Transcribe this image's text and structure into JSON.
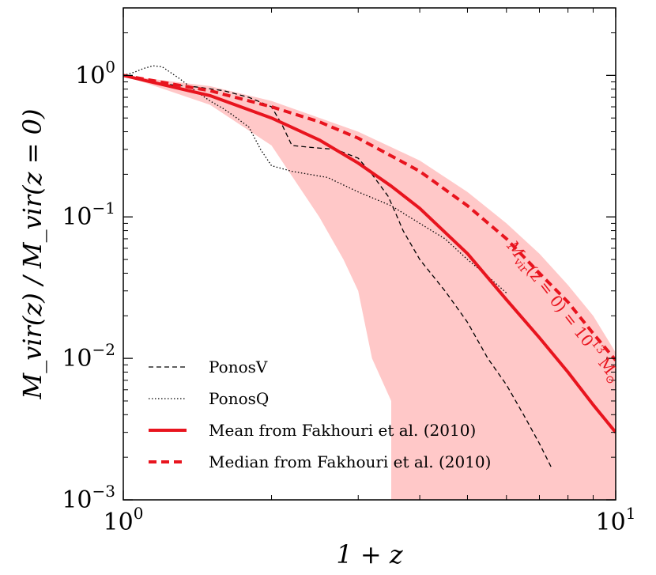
{
  "chart_data": {
    "type": "line",
    "x_scale": "log",
    "y_scale": "log",
    "xlim": [
      1,
      10
    ],
    "ylim": [
      0.001,
      3
    ],
    "xlabel": "1 + z",
    "ylabel": "M_vir(z) / M_vir(z = 0)",
    "x_ticks": [
      {
        "value": 1,
        "label_base": "10",
        "label_exp": "0"
      },
      {
        "value": 10,
        "label_base": "10",
        "label_exp": "1"
      }
    ],
    "y_ticks": [
      {
        "value": 1,
        "label_base": "10",
        "label_exp": "0"
      },
      {
        "value": 0.1,
        "label_base": "10",
        "label_exp": "−1"
      },
      {
        "value": 0.01,
        "label_base": "10",
        "label_exp": "−2"
      },
      {
        "value": 0.001,
        "label_base": "10",
        "label_exp": "−3"
      }
    ],
    "band": {
      "name": "scatter range",
      "color": "#ffc8c8",
      "upper": {
        "x": [
          1,
          1.5,
          2,
          3,
          4,
          5,
          6,
          7,
          8,
          9,
          10
        ],
        "y": [
          1,
          0.84,
          0.66,
          0.4,
          0.25,
          0.15,
          0.09,
          0.055,
          0.033,
          0.02,
          0.011
        ]
      },
      "lower": {
        "x": [
          1,
          1.5,
          2,
          2.5,
          2.8,
          3.0,
          3.2,
          3.5,
          3.5,
          10
        ],
        "y": [
          1,
          0.62,
          0.32,
          0.1,
          0.05,
          0.03,
          0.01,
          0.005,
          0.001,
          0.001
        ]
      }
    },
    "series": [
      {
        "name": "PonosV",
        "style": "dashed",
        "color": "#000000",
        "x": [
          1,
          1.2,
          1.4,
          1.6,
          1.8,
          2.0,
          2.1,
          2.2,
          2.4,
          2.7,
          3.0,
          3.2,
          3.45,
          3.6,
          3.7,
          4.0,
          4.5,
          5.0,
          5.5,
          6.0,
          6.5,
          7.0,
          7.4
        ],
        "y": [
          1,
          0.87,
          0.83,
          0.78,
          0.7,
          0.6,
          0.45,
          0.32,
          0.31,
          0.3,
          0.26,
          0.2,
          0.14,
          0.1,
          0.08,
          0.05,
          0.03,
          0.018,
          0.01,
          0.0065,
          0.004,
          0.0025,
          0.0017
        ]
      },
      {
        "name": "PonosQ",
        "style": "dotted",
        "color": "#000000",
        "x": [
          1,
          1.05,
          1.1,
          1.15,
          1.2,
          1.3,
          1.4,
          1.5,
          1.6,
          1.7,
          1.8,
          1.9,
          2.0,
          2.2,
          2.6,
          3.0,
          3.5,
          4.0,
          4.5,
          5.0,
          5.5,
          6.0
        ],
        "y": [
          1,
          1.05,
          1.12,
          1.17,
          1.15,
          0.95,
          0.78,
          0.66,
          0.58,
          0.5,
          0.43,
          0.3,
          0.23,
          0.21,
          0.19,
          0.15,
          0.12,
          0.09,
          0.07,
          0.05,
          0.038,
          0.029
        ]
      },
      {
        "name": "Mean from Fakhouri et al. (2010)",
        "style": "solid",
        "color": "#e8141e",
        "x": [
          1,
          1.5,
          2,
          2.5,
          3,
          3.5,
          4,
          5,
          6,
          7,
          8,
          9,
          10
        ],
        "y": [
          1,
          0.72,
          0.5,
          0.35,
          0.24,
          0.165,
          0.115,
          0.055,
          0.026,
          0.014,
          0.008,
          0.0047,
          0.003
        ]
      },
      {
        "name": "Median from Fakhouri et al. (2010)",
        "style": "dashed",
        "color": "#e8141e",
        "x": [
          1,
          1.5,
          2,
          2.5,
          3,
          3.5,
          4,
          5,
          6,
          7,
          8,
          9,
          10
        ],
        "y": [
          1,
          0.78,
          0.6,
          0.47,
          0.36,
          0.27,
          0.21,
          0.12,
          0.07,
          0.04,
          0.025,
          0.015,
          0.0097
        ]
      }
    ],
    "legend": {
      "position": "lower-left",
      "entries": [
        {
          "label": "PonosV",
          "style": "dashed",
          "color": "#000000"
        },
        {
          "label": "PonosQ",
          "style": "dotted",
          "color": "#000000"
        },
        {
          "label": "Mean from Fakhouri et al. (2010)",
          "style": "solid",
          "color": "#e8141e"
        },
        {
          "label": "Median from Fakhouri et al. (2010)",
          "style": "dashed",
          "color": "#e8141e"
        }
      ]
    },
    "annotation": {
      "text_main": "M",
      "text_sub": "vir",
      "text_mid": "(z = 0) = 10",
      "text_exp": "13",
      "text_unit": " M",
      "text_unit_sub": "⊙",
      "color": "#e8141e"
    }
  }
}
